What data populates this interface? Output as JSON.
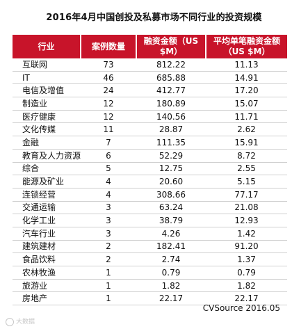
{
  "title": "2016年4月中国创投及私募市场不同行业的投资规模",
  "table": {
    "headers": [
      "行业",
      "案例数量",
      "融资金额（US $M）",
      "平均单笔融资金额（US $M）"
    ],
    "rows": [
      [
        "互联网",
        "73",
        "812.22",
        "11.13"
      ],
      [
        "IT",
        "46",
        "685.88",
        "14.91"
      ],
      [
        "电信及增值",
        "24",
        "412.77",
        "17.20"
      ],
      [
        "制造业",
        "12",
        "180.89",
        "15.07"
      ],
      [
        "医疗健康",
        "12",
        "140.56",
        "11.71"
      ],
      [
        "文化传媒",
        "11",
        "28.87",
        "2.62"
      ],
      [
        "金融",
        "7",
        "111.35",
        "15.91"
      ],
      [
        "教育及人力资源",
        "6",
        "52.29",
        "8.72"
      ],
      [
        "综合",
        "5",
        "12.75",
        "2.55"
      ],
      [
        "能源及矿业",
        "4",
        "20.60",
        "5.15"
      ],
      [
        "连锁经营",
        "4",
        "308.66",
        "77.17"
      ],
      [
        "交通运输",
        "3",
        "63.24",
        "21.08"
      ],
      [
        "化学工业",
        "3",
        "38.79",
        "12.93"
      ],
      [
        "汽车行业",
        "3",
        "4.26",
        "1.42"
      ],
      [
        "建筑建材",
        "2",
        "182.41",
        "91.20"
      ],
      [
        "食品饮料",
        "2",
        "2.74",
        "1.37"
      ],
      [
        "农林牧渔",
        "1",
        "0.79",
        "0.79"
      ],
      [
        "旅游业",
        "1",
        "1.82",
        "1.82"
      ],
      [
        "房地产",
        "1",
        "22.17",
        "22.17"
      ]
    ]
  },
  "source": "CVSource 2016.05",
  "watermark": "大数据",
  "colors": {
    "header_bg": "#c8142a",
    "header_text": "#ffffff"
  }
}
